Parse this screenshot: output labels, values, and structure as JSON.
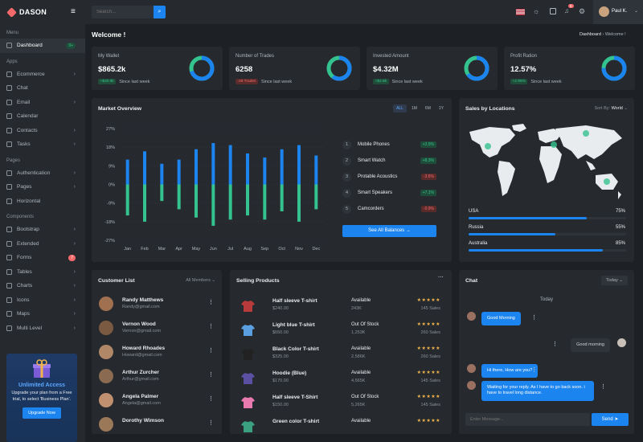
{
  "brand": "DASON",
  "sidebar": {
    "menu_title": "Menu",
    "dashboard": {
      "label": "Dashboard",
      "badge": "9+"
    },
    "apps_title": "Apps",
    "apps": [
      {
        "label": "Ecommerce"
      },
      {
        "label": "Chat"
      },
      {
        "label": "Email"
      },
      {
        "label": "Calendar"
      },
      {
        "label": "Contacts"
      },
      {
        "label": "Tasks"
      }
    ],
    "pages_title": "Pages",
    "pages": [
      {
        "label": "Authentication"
      },
      {
        "label": "Pages"
      },
      {
        "label": "Horizontal"
      }
    ],
    "components_title": "Components",
    "components": [
      {
        "label": "Bootstrap"
      },
      {
        "label": "Extended"
      },
      {
        "label": "Forms",
        "badge": "7"
      },
      {
        "label": "Tables"
      },
      {
        "label": "Charts"
      },
      {
        "label": "Icons"
      },
      {
        "label": "Maps"
      },
      {
        "label": "Multi Level"
      }
    ],
    "promo": {
      "title": "Unlimited Access",
      "text": "Upgrade your plan from a Free trial, to select 'Business Plan'.",
      "button": "Upgrade Now"
    }
  },
  "topbar": {
    "search_placeholder": "Search...",
    "user": "Paul K.",
    "notif_count": "5"
  },
  "page": {
    "title": "Welcome !",
    "breadcrumb_1": "Dashboard",
    "breadcrumb_sep": "›",
    "breadcrumb_2": "Welcome !"
  },
  "stats": [
    {
      "label": "My Wallet",
      "value": "$865.2k",
      "change": "+$20.9k",
      "change_type": "up",
      "since": "Since last week",
      "ring": 0.7,
      "ring_color": "#1c84ee",
      "ring_alt": "#34c38f"
    },
    {
      "label": "Number of Trades",
      "value": "6258",
      "change": "-29 Trades",
      "change_type": "down",
      "since": "Since last week",
      "ring": 0.6,
      "ring_color": "#1c84ee",
      "ring_alt": "#34c38f"
    },
    {
      "label": "Invested Amount",
      "value": "$4.32M",
      "change": "+$2.8k",
      "change_type": "up",
      "since": "Since last week",
      "ring": 0.65,
      "ring_color": "#1c84ee",
      "ring_alt": "#34c38f"
    },
    {
      "label": "Profit Ration",
      "value": "12.57%",
      "change": "+2.95%",
      "change_type": "up",
      "since": "Since last week",
      "ring": 0.75,
      "ring_color": "#1c84ee",
      "ring_alt": "#34c38f"
    }
  ],
  "market": {
    "title": "Market Overview",
    "ranges": [
      "ALL",
      "1M",
      "6M",
      "1Y"
    ],
    "list": [
      {
        "num": "1",
        "name": "Mobile Phones",
        "change": "+2.5%",
        "type": "up"
      },
      {
        "num": "2",
        "name": "Smart Watch",
        "change": "+8.3%",
        "type": "up"
      },
      {
        "num": "3",
        "name": "Protable Acoustics",
        "change": "-3.6%",
        "type": "down"
      },
      {
        "num": "4",
        "name": "Smart Speakers",
        "change": "+7.1%",
        "type": "up"
      },
      {
        "num": "5",
        "name": "Camcorders",
        "change": "-0.9%",
        "type": "down"
      }
    ],
    "button": "See All Balances",
    "button_arrow": "→"
  },
  "chart_data": {
    "type": "bar",
    "categories": [
      "Jan",
      "Feb",
      "Mar",
      "Apr",
      "May",
      "Jun",
      "Jul",
      "Aug",
      "Sep",
      "Oct",
      "Nov",
      "Dec"
    ],
    "yticks": [
      "27%",
      "18%",
      "9%",
      "0%",
      "-9%",
      "-18%",
      "-27%"
    ],
    "ylim": [
      -27,
      27
    ],
    "series": [
      {
        "values": [
          12,
          16,
          10,
          12,
          17,
          20,
          19,
          15,
          13,
          17,
          19,
          14
        ],
        "color": "#1c84ee"
      },
      {
        "values": [
          -15,
          -18,
          -8,
          -12,
          -16,
          -20,
          -17,
          -15,
          -17,
          -13,
          -18,
          -12
        ],
        "color": "#34c38f"
      }
    ]
  },
  "locations": {
    "title": "Sales by Locations",
    "sort_label": "Sort By:",
    "sort_value": "World",
    "items": [
      {
        "name": "USA",
        "value": "75%",
        "pct": 0.75
      },
      {
        "name": "Russia",
        "value": "55%",
        "pct": 0.55
      },
      {
        "name": "Australia",
        "value": "85%",
        "pct": 0.85
      }
    ]
  },
  "customers": {
    "title": "Customer List",
    "filter": "All Members",
    "items": [
      {
        "name": "Randy Matthews",
        "email": "Randy@gmail.com"
      },
      {
        "name": "Vernon Wood",
        "email": "Vernon@gmail.com"
      },
      {
        "name": "Howard Rhoades",
        "email": "Howard@gmail.com"
      },
      {
        "name": "Arthur Zurcher",
        "email": "Arthur@gmail.com"
      },
      {
        "name": "Angela Palmer",
        "email": "Angela@gmail.com"
      },
      {
        "name": "Dorothy Wimson",
        "email": ""
      }
    ]
  },
  "products": {
    "title": "Selling Products",
    "items": [
      {
        "name": "Half sleeve T-shirt",
        "price": "$240.00",
        "status": "Available",
        "qty": "243K",
        "sales": "145 Sales",
        "color": "#b83a3a",
        "stars": "★★★★★"
      },
      {
        "name": "Light blue T-shirt",
        "price": "$650.00",
        "status": "Out Of Stock",
        "qty": "1,253K",
        "sales": "260 Sales",
        "color": "#5aa0e0",
        "stars": "★★★★★"
      },
      {
        "name": "Black Color T-shirt",
        "price": "$325.00",
        "status": "Available",
        "qty": "2,586K",
        "sales": "260 Sales",
        "color": "#222222",
        "stars": "★★★★★"
      },
      {
        "name": "Hoodie (Blue)",
        "price": "$170.00",
        "status": "Available",
        "qty": "4,565K",
        "sales": "145 Sales",
        "color": "#5a4fa0",
        "stars": "★★★★★"
      },
      {
        "name": "Half sleeve T-Shirt",
        "price": "$150.00",
        "status": "Out Of Stock",
        "qty": "5,265K",
        "sales": "145 Sales",
        "color": "#e87ab0",
        "stars": "★★★★★"
      },
      {
        "name": "Green color T-shirt",
        "price": "",
        "status": "Available",
        "qty": "",
        "sales": "",
        "color": "#3aa080",
        "stars": "★★★★★"
      }
    ]
  },
  "chat": {
    "title": "Chat",
    "filter": "Today",
    "day": "Today",
    "messages": [
      {
        "text": "Good Morning",
        "side": "in"
      },
      {
        "text": "Good morning",
        "side": "out"
      },
      {
        "text": "Hi there, How are you?",
        "side": "in"
      },
      {
        "text": "Waiting for your reply. As I have to go back soon. i have to travel long distance.",
        "side": "in"
      }
    ],
    "input_placeholder": "Enter Message...",
    "send": "Send"
  }
}
